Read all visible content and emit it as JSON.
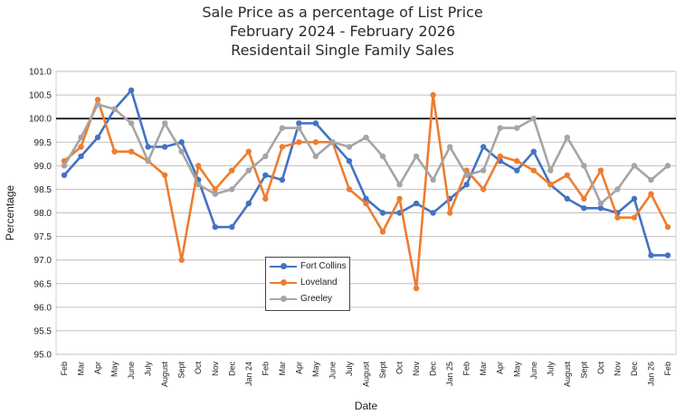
{
  "title": {
    "line1": "Sale Price as a percentage of List Price",
    "line2": "February 2024 - February 2026",
    "line3": "Residentail Single Family Sales"
  },
  "chart_data": {
    "type": "line",
    "xlabel": "Date",
    "ylabel": "Percentage",
    "ylim": [
      95.0,
      101.0
    ],
    "ytick_step": 0.5,
    "yticks": [
      "95.0",
      "95.5",
      "96.0",
      "96.5",
      "97.0",
      "97.5",
      "98.0",
      "98.5",
      "99.0",
      "99.5",
      "100.0",
      "100.5",
      "101.0"
    ],
    "reference_line": 100.0,
    "grid": true,
    "legend_position": "lower-middle",
    "categories": [
      "Feb",
      "Mar",
      "Apr",
      "May",
      "June",
      "July",
      "August",
      "Sept",
      "Oct",
      "Nov",
      "Dec",
      "Jan 24",
      "Feb",
      "Mar",
      "Apr",
      "May",
      "June",
      "July",
      "August",
      "Sept",
      "Oct",
      "Nov",
      "Dec",
      "Jan 25",
      "Feb",
      "Mar",
      "Apr",
      "May",
      "June",
      "July",
      "August",
      "Sept",
      "Oct",
      "Nov",
      "Dec",
      "Jan 26",
      "Feb"
    ],
    "series": [
      {
        "name": "Fort Collins",
        "color": "#4472C4",
        "values": [
          98.8,
          99.2,
          99.6,
          100.2,
          100.6,
          99.4,
          99.4,
          99.5,
          98.7,
          97.7,
          97.7,
          98.2,
          98.8,
          98.7,
          99.9,
          99.9,
          99.5,
          99.1,
          98.3,
          98.0,
          98.0,
          98.2,
          98.0,
          98.3,
          98.6,
          99.4,
          99.1,
          98.9,
          99.3,
          98.6,
          98.3,
          98.1,
          98.1,
          98.0,
          98.3,
          97.1,
          97.1
        ]
      },
      {
        "name": "Loveland",
        "color": "#ED7D31",
        "values": [
          99.1,
          99.4,
          100.4,
          99.3,
          99.3,
          99.1,
          98.8,
          97.0,
          99.0,
          98.5,
          98.9,
          99.3,
          98.3,
          99.4,
          99.5,
          99.5,
          99.5,
          98.5,
          98.2,
          97.6,
          98.3,
          96.4,
          100.5,
          98.0,
          98.9,
          98.5,
          99.2,
          99.1,
          98.9,
          98.6,
          98.8,
          98.3,
          98.9,
          97.9,
          97.9,
          98.4,
          97.7
        ]
      },
      {
        "name": "Greeley",
        "color": "#A5A5A5",
        "values": [
          99.0,
          99.6,
          100.3,
          100.2,
          99.9,
          99.1,
          99.9,
          99.3,
          98.6,
          98.4,
          98.5,
          98.9,
          99.2,
          99.8,
          99.8,
          99.2,
          99.5,
          99.4,
          99.6,
          99.2,
          98.6,
          99.2,
          98.7,
          99.4,
          98.8,
          98.9,
          99.8,
          99.8,
          100.0,
          98.9,
          99.6,
          99.0,
          98.2,
          98.5,
          99.0,
          98.7,
          99.0
        ]
      }
    ]
  }
}
